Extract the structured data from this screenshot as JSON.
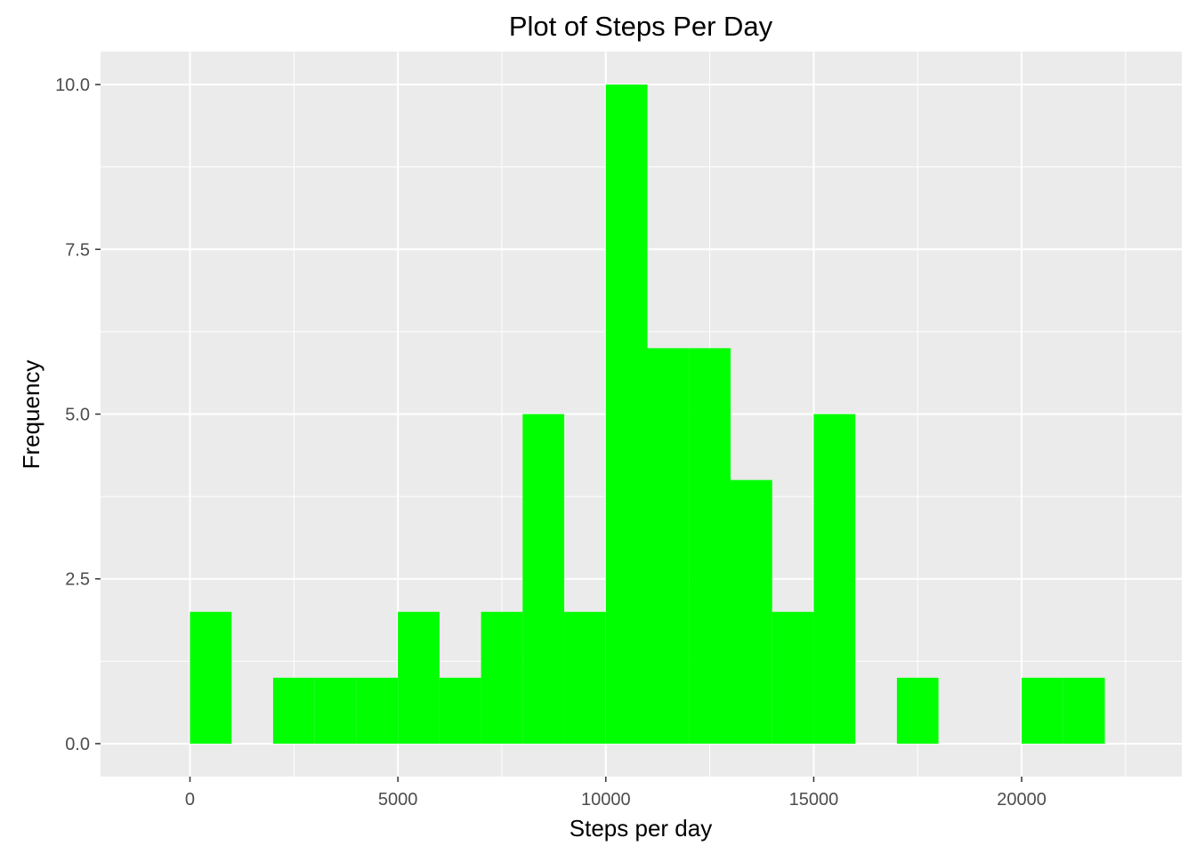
{
  "chart_data": {
    "type": "bar",
    "title": "Plot of Steps Per Day",
    "xlabel": "Steps per day",
    "ylabel": "Frequency",
    "xlim": [
      -2150,
      23850
    ],
    "ylim": [
      -0.5,
      10.5
    ],
    "x_ticks": [
      0,
      5000,
      10000,
      15000,
      20000
    ],
    "x_tick_labels": [
      "0",
      "5000",
      "10000",
      "15000",
      "20000"
    ],
    "y_ticks": [
      0,
      2.5,
      5,
      7.5,
      10
    ],
    "y_tick_labels": [
      "0.0",
      "2.5",
      "5.0",
      "7.5",
      "10.0"
    ],
    "bin_width": 1000,
    "bins": [
      {
        "x0": 0,
        "x1": 1000,
        "count": 2
      },
      {
        "x0": 1000,
        "x1": 2000,
        "count": 0
      },
      {
        "x0": 2000,
        "x1": 3000,
        "count": 1
      },
      {
        "x0": 3000,
        "x1": 4000,
        "count": 1
      },
      {
        "x0": 4000,
        "x1": 5000,
        "count": 1
      },
      {
        "x0": 5000,
        "x1": 6000,
        "count": 2
      },
      {
        "x0": 6000,
        "x1": 7000,
        "count": 1
      },
      {
        "x0": 7000,
        "x1": 8000,
        "count": 2
      },
      {
        "x0": 8000,
        "x1": 9000,
        "count": 5
      },
      {
        "x0": 9000,
        "x1": 10000,
        "count": 2
      },
      {
        "x0": 10000,
        "x1": 11000,
        "count": 10
      },
      {
        "x0": 11000,
        "x1": 12000,
        "count": 6
      },
      {
        "x0": 12000,
        "x1": 13000,
        "count": 6
      },
      {
        "x0": 13000,
        "x1": 14000,
        "count": 4
      },
      {
        "x0": 14000,
        "x1": 15000,
        "count": 2
      },
      {
        "x0": 15000,
        "x1": 16000,
        "count": 5
      },
      {
        "x0": 16000,
        "x1": 17000,
        "count": 0
      },
      {
        "x0": 17000,
        "x1": 18000,
        "count": 1
      },
      {
        "x0": 18000,
        "x1": 19000,
        "count": 0
      },
      {
        "x0": 19000,
        "x1": 20000,
        "count": 0
      },
      {
        "x0": 20000,
        "x1": 21000,
        "count": 1
      },
      {
        "x0": 21000,
        "x1": 22000,
        "count": 1
      }
    ],
    "grid": true,
    "legend": "none",
    "colors": {
      "bar": "#00ff00",
      "panel_background": "#ebebeb",
      "grid": "#ffffff",
      "tick_text": "#4d4d4d",
      "tick_mark": "#333333"
    }
  }
}
